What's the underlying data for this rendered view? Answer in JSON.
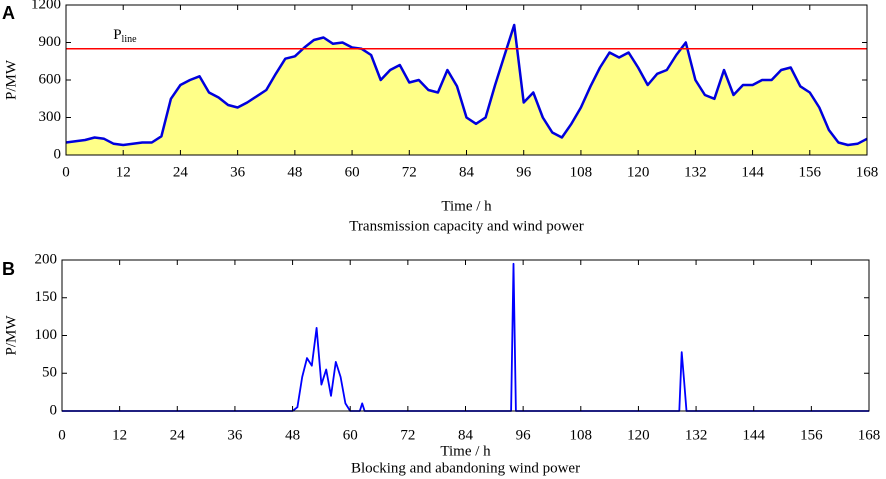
{
  "chart_data": [
    {
      "type": "area",
      "panel": "A",
      "title": "Transmission capacity and wind power",
      "xlabel": "Time / h",
      "ylabel": "P/MW",
      "xlim": [
        0,
        168
      ],
      "xticks": [
        0,
        12,
        24,
        36,
        48,
        60,
        72,
        84,
        96,
        108,
        120,
        132,
        144,
        156,
        168
      ],
      "ylim": [
        0,
        1200
      ],
      "yticks": [
        0,
        300,
        600,
        900,
        1200
      ],
      "grid": false,
      "hline": {
        "value": 850,
        "color": "#ff0000",
        "label": "P",
        "label_sub": "line"
      },
      "x": [
        0,
        2,
        4,
        6,
        8,
        10,
        12,
        14,
        16,
        18,
        20,
        22,
        24,
        26,
        28,
        30,
        32,
        34,
        36,
        38,
        40,
        42,
        44,
        46,
        48,
        50,
        52,
        54,
        56,
        58,
        60,
        62,
        64,
        66,
        68,
        70,
        72,
        74,
        76,
        78,
        80,
        82,
        84,
        86,
        88,
        90,
        92,
        94,
        96,
        98,
        100,
        102,
        104,
        106,
        108,
        110,
        112,
        114,
        116,
        118,
        120,
        122,
        124,
        126,
        128,
        130,
        132,
        134,
        136,
        138,
        140,
        142,
        144,
        146,
        148,
        150,
        152,
        154,
        156,
        158,
        160,
        162,
        164,
        166,
        168
      ],
      "series": [
        {
          "color": "#0000dd",
          "fill": "#ffff88",
          "values": [
            100,
            110,
            120,
            140,
            130,
            90,
            80,
            90,
            100,
            100,
            150,
            450,
            560,
            600,
            630,
            500,
            460,
            400,
            380,
            420,
            470,
            520,
            650,
            770,
            790,
            860,
            920,
            940,
            890,
            900,
            860,
            850,
            800,
            600,
            680,
            720,
            580,
            600,
            520,
            500,
            680,
            550,
            300,
            250,
            300,
            560,
            800,
            1040,
            420,
            500,
            300,
            180,
            140,
            250,
            380,
            550,
            700,
            820,
            780,
            820,
            700,
            560,
            650,
            680,
            800,
            900,
            600,
            480,
            450,
            680,
            480,
            560,
            560,
            600,
            600,
            680,
            700,
            550,
            500,
            380,
            200,
            100,
            80,
            90,
            130
          ]
        }
      ]
    },
    {
      "type": "line",
      "panel": "B",
      "title": "Blocking and abandoning wind power",
      "xlabel": "Time / h",
      "ylabel": "P/MW",
      "xlim": [
        0,
        168
      ],
      "xticks": [
        0,
        12,
        24,
        36,
        48,
        60,
        72,
        84,
        96,
        108,
        120,
        132,
        144,
        156,
        168
      ],
      "ylim": [
        0,
        200
      ],
      "yticks": [
        0,
        50,
        100,
        150,
        200
      ],
      "grid": false,
      "x": [
        0,
        48,
        49,
        50,
        51,
        52,
        53,
        54,
        55,
        56,
        57,
        58,
        59,
        60,
        62,
        62.5,
        63,
        64,
        93,
        93.5,
        94,
        94.5,
        95,
        128,
        128.5,
        129,
        129.5,
        130,
        131,
        168
      ],
      "series": [
        {
          "color": "#0000ff",
          "values": [
            0,
            0,
            5,
            45,
            70,
            60,
            110,
            35,
            55,
            20,
            65,
            45,
            10,
            0,
            0,
            10,
            0,
            0,
            0,
            0,
            195,
            0,
            0,
            0,
            0,
            78,
            40,
            0,
            0,
            0
          ]
        }
      ]
    }
  ]
}
